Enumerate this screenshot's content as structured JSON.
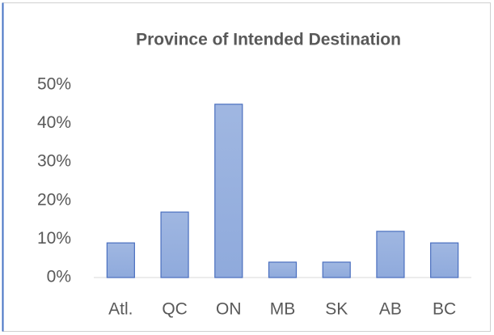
{
  "chart_data": {
    "type": "bar",
    "title": "Province of Intended Destination",
    "categories": [
      "Atl.",
      "QC",
      "ON",
      "MB",
      "SK",
      "AB",
      "BC"
    ],
    "values": [
      9,
      17,
      45,
      4,
      4,
      12,
      9
    ],
    "color": "#8faadc",
    "ylim": [
      0,
      50
    ],
    "yticks": [
      {
        "value": 0,
        "label": "0%"
      },
      {
        "value": 10,
        "label": "10%"
      },
      {
        "value": 20,
        "label": "20%"
      },
      {
        "value": 30,
        "label": "30%"
      },
      {
        "value": 40,
        "label": "40%"
      },
      {
        "value": 50,
        "label": "50%"
      }
    ],
    "grid": false
  }
}
